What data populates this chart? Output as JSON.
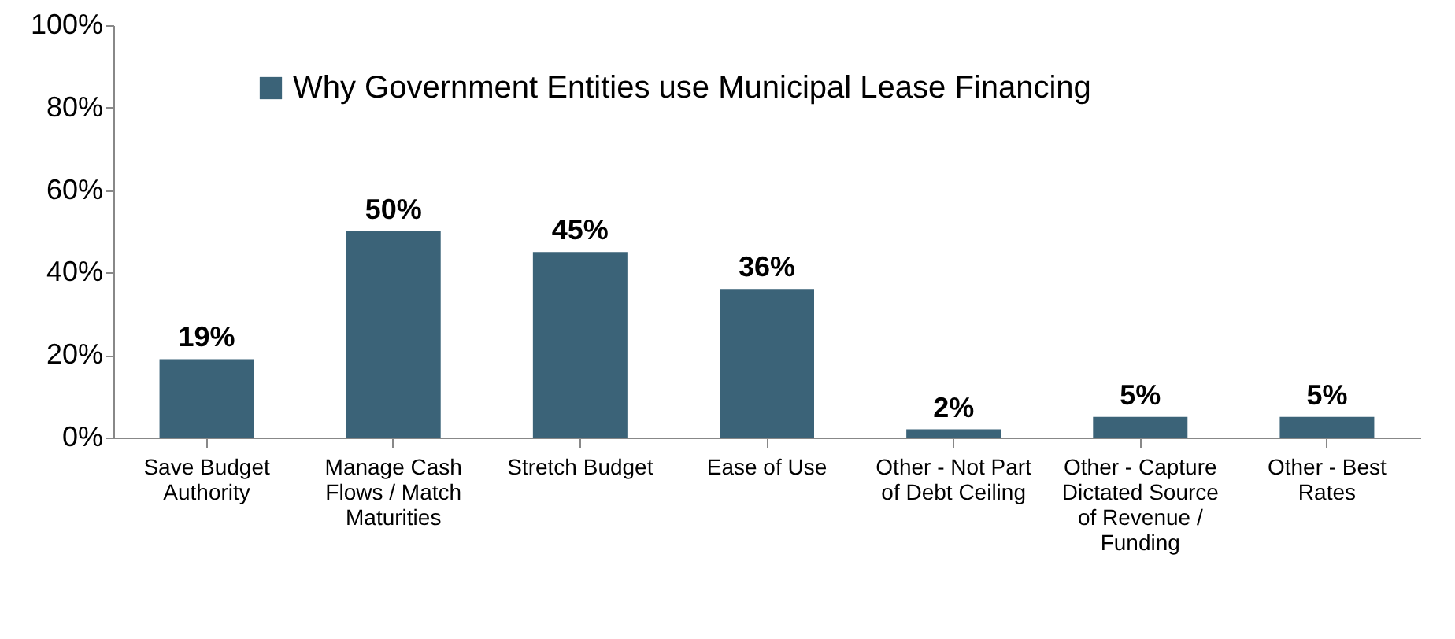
{
  "chart_data": {
    "type": "bar",
    "categories": [
      "Save Budget Authority",
      "Manage Cash Flows / Match Maturities",
      "Stretch Budget",
      "Ease of Use",
      "Other - Not Part of Debt Ceiling",
      "Other - Capture Dictated Source of Revenue / Funding",
      "Other - Best Rates"
    ],
    "series": [
      {
        "name": "Why Government Entities use Municipal Lease Financing",
        "color": "#3b6378",
        "values": [
          19,
          50,
          45,
          36,
          2,
          5,
          5
        ],
        "value_labels": [
          "19%",
          "50%",
          "45%",
          "36%",
          "2%",
          "5%",
          "5%"
        ]
      }
    ],
    "ylim": [
      0,
      100
    ],
    "yticks": [
      {
        "value": 0,
        "label": "0%"
      },
      {
        "value": 20,
        "label": "20%"
      },
      {
        "value": 40,
        "label": "40%"
      },
      {
        "value": 60,
        "label": "60%"
      },
      {
        "value": 80,
        "label": "80%"
      },
      {
        "value": 100,
        "label": "100%"
      }
    ],
    "grid": false,
    "legend": "top"
  }
}
